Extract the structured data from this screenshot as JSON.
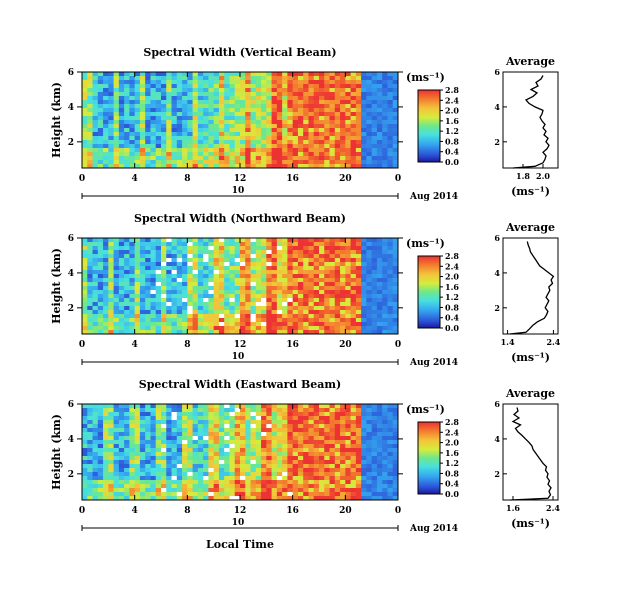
{
  "figure": {
    "date_label": "Aug 2014",
    "day_label": "10",
    "xlabel": "Local Time"
  },
  "chart_data": [
    {
      "type": "heatmap",
      "title": "Spectral Width (Vertical Beam)",
      "xlabel": "",
      "ylabel": "Height (km)",
      "xlim": [
        0,
        24
      ],
      "ylim": [
        0.5,
        6
      ],
      "xticks": [
        "0",
        "4",
        "8",
        "12",
        "16",
        "20",
        "0"
      ],
      "yticks": [
        "2",
        "4",
        "6"
      ],
      "colorbar": {
        "unit": "(ms⁻¹)",
        "range": [
          0,
          2.8
        ],
        "ticks": [
          "0.0",
          "0.4",
          "0.8",
          "1.2",
          "1.6",
          "2.0",
          "2.4",
          "2.8"
        ]
      },
      "average": {
        "title": "Average",
        "xlabel": "(ms⁻¹)",
        "xlim": [
          1.6,
          2.15
        ],
        "xticks": [
          "1.8",
          "2.0"
        ],
        "height": [
          0.5,
          0.6,
          0.8,
          1.0,
          1.2,
          1.4,
          1.6,
          1.8,
          2.0,
          2.2,
          2.4,
          2.6,
          2.8,
          3.0,
          3.2,
          3.4,
          3.6,
          3.8,
          4.0,
          4.2,
          4.4,
          4.6,
          4.8,
          5.0,
          5.2,
          5.4,
          5.6,
          5.8
        ],
        "value": [
          1.7,
          1.92,
          2.0,
          2.02,
          2.03,
          2.0,
          2.04,
          2.06,
          2.03,
          2.05,
          2.01,
          2.03,
          2.0,
          2.02,
          1.99,
          1.97,
          1.99,
          2.0,
          1.92,
          1.86,
          1.83,
          1.9,
          1.94,
          1.88,
          1.95,
          1.93,
          1.98,
          2.0
        ]
      }
    },
    {
      "type": "heatmap",
      "title": "Spectral Width (Northward Beam)",
      "xlabel": "",
      "ylabel": "Height (km)",
      "xlim": [
        0,
        24
      ],
      "ylim": [
        0.5,
        6
      ],
      "xticks": [
        "0",
        "4",
        "8",
        "12",
        "16",
        "20",
        "0"
      ],
      "yticks": [
        "2",
        "4",
        "6"
      ],
      "colorbar": {
        "unit": "(ms⁻¹)",
        "range": [
          0,
          2.8
        ],
        "ticks": [
          "0.0",
          "0.4",
          "0.8",
          "1.2",
          "1.6",
          "2.0",
          "2.4",
          "2.8"
        ]
      },
      "average": {
        "title": "Average",
        "xlabel": "(ms⁻¹)",
        "xlim": [
          1.3,
          2.5
        ],
        "xticks": [
          "1.4",
          "2.4"
        ],
        "height": [
          0.5,
          0.6,
          0.8,
          1.0,
          1.2,
          1.4,
          1.6,
          1.8,
          2.0,
          2.2,
          2.4,
          2.6,
          2.8,
          3.0,
          3.2,
          3.4,
          3.6,
          3.8,
          4.0,
          4.2,
          4.4,
          4.6,
          4.8,
          5.0,
          5.2,
          5.4,
          5.6,
          5.8
        ],
        "value": [
          1.45,
          1.8,
          1.88,
          1.95,
          2.05,
          2.2,
          2.25,
          2.28,
          2.22,
          2.26,
          2.3,
          2.24,
          2.28,
          2.32,
          2.3,
          2.38,
          2.35,
          2.4,
          2.3,
          2.2,
          2.1,
          2.05,
          2.0,
          1.95,
          1.9,
          1.88,
          1.85,
          1.83
        ]
      }
    },
    {
      "type": "heatmap",
      "title": "Spectral Width (Eastward Beam)",
      "xlabel": "Local Time",
      "ylabel": "Height (km)",
      "xlim": [
        0,
        24
      ],
      "ylim": [
        0.5,
        6
      ],
      "xticks": [
        "0",
        "4",
        "8",
        "12",
        "16",
        "20",
        "0"
      ],
      "yticks": [
        "2",
        "4",
        "6"
      ],
      "colorbar": {
        "unit": "(ms⁻¹)",
        "range": [
          0,
          2.8
        ],
        "ticks": [
          "0.0",
          "0.4",
          "0.8",
          "1.2",
          "1.6",
          "2.0",
          "2.4",
          "2.8"
        ]
      },
      "average": {
        "title": "Average",
        "xlabel": "(ms⁻¹)",
        "xlim": [
          1.4,
          2.5
        ],
        "xticks": [
          "1.6",
          "2.4"
        ],
        "height": [
          0.5,
          0.6,
          0.8,
          1.0,
          1.2,
          1.4,
          1.6,
          1.8,
          2.0,
          2.2,
          2.4,
          2.6,
          2.8,
          3.0,
          3.2,
          3.4,
          3.6,
          3.8,
          4.0,
          4.2,
          4.4,
          4.6,
          4.8,
          5.0,
          5.2,
          5.4,
          5.6,
          5.8
        ],
        "value": [
          1.55,
          2.3,
          2.35,
          2.32,
          2.36,
          2.3,
          2.33,
          2.28,
          2.3,
          2.25,
          2.27,
          2.2,
          2.15,
          2.1,
          2.05,
          2.0,
          1.98,
          1.92,
          1.85,
          1.78,
          1.7,
          1.65,
          1.75,
          1.6,
          1.72,
          1.62,
          1.7,
          1.68
        ]
      }
    }
  ]
}
